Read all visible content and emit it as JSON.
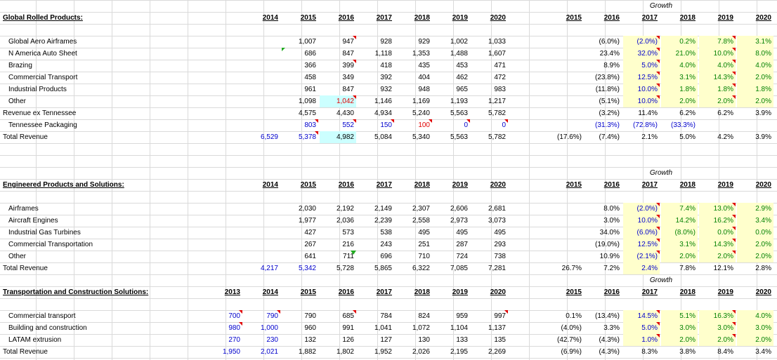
{
  "sheet": {
    "growth_label": "Growth",
    "sections": [
      {
        "title": "Global Rolled Products:",
        "years": [
          "2014",
          "2015",
          "2016",
          "2017",
          "2018",
          "2019",
          "2020"
        ],
        "growth_years": [
          "2015",
          "2016",
          "2017",
          "2018",
          "2019",
          "2020"
        ],
        "rows": [
          {
            "label": "Global Aero Airframes",
            "indent": true,
            "v": [
              "",
              "1,007",
              "947",
              "928",
              "929",
              "1,002",
              "1,033"
            ],
            "g": [
              "",
              "(6.0%)",
              "(2.0%)",
              "0.2%",
              "7.8%",
              "3.1%"
            ]
          },
          {
            "label": "N America Auto Sheet",
            "indent": true,
            "v": [
              "",
              "686",
              "847",
              "1,118",
              "1,353",
              "1,488",
              "1,607"
            ],
            "g": [
              "",
              "23.4%",
              "32.0%",
              "21.0%",
              "10.0%",
              "8.0%"
            ]
          },
          {
            "label": "Brazing",
            "indent": true,
            "v": [
              "",
              "366",
              "399",
              "418",
              "435",
              "453",
              "471"
            ],
            "g": [
              "",
              "8.9%",
              "5.0%",
              "4.0%",
              "4.0%",
              "4.0%"
            ]
          },
          {
            "label": "Commercial Transport",
            "indent": true,
            "v": [
              "",
              "458",
              "349",
              "392",
              "404",
              "462",
              "472"
            ],
            "g": [
              "",
              "(23.8%)",
              "12.5%",
              "3.1%",
              "14.3%",
              "2.0%"
            ]
          },
          {
            "label": "Industrial Products",
            "indent": true,
            "v": [
              "",
              "961",
              "847",
              "932",
              "948",
              "965",
              "983"
            ],
            "g": [
              "",
              "(11.8%)",
              "10.0%",
              "1.8%",
              "1.8%",
              "1.8%"
            ]
          },
          {
            "label": "Other",
            "indent": true,
            "v": [
              "",
              "1,098",
              "1,042",
              "1,146",
              "1,169",
              "1,193",
              "1,217"
            ],
            "g": [
              "",
              "(5.1%)",
              "10.0%",
              "2.0%",
              "2.0%",
              "2.0%"
            ]
          },
          {
            "label": "Revenue ex Tennessee",
            "indent": false,
            "v": [
              "",
              "4,575",
              "4,430",
              "4,934",
              "5,240",
              "5,563",
              "5,782"
            ],
            "g": [
              "",
              "(3.2%)",
              "11.4%",
              "6.2%",
              "6.2%",
              "3.9%"
            ]
          },
          {
            "label": "Tennessee Packaging",
            "indent": true,
            "v": [
              "",
              "803",
              "552",
              "150",
              "100",
              "0",
              "0"
            ],
            "g": [
              "",
              "(31.3%)",
              "(72.8%)",
              "(33.3%)",
              "",
              ""
            ]
          },
          {
            "label": "Total Revenue",
            "indent": false,
            "v": [
              "6,529",
              "5,378",
              "4,982",
              "5,084",
              "5,340",
              "5,563",
              "5,782"
            ],
            "g": [
              "(17.6%)",
              "(7.4%)",
              "2.1%",
              "5.0%",
              "4.2%",
              "3.9%"
            ]
          }
        ]
      },
      {
        "title": "Engineered Products and Solutions:",
        "years": [
          "2014",
          "2015",
          "2016",
          "2017",
          "2018",
          "2019",
          "2020"
        ],
        "growth_years": [
          "2015",
          "2016",
          "2017",
          "2018",
          "2019",
          "2020"
        ],
        "rows": [
          {
            "label": "Airframes",
            "indent": true,
            "v": [
              "",
              "2,030",
              "2,192",
              "2,149",
              "2,307",
              "2,606",
              "2,681"
            ],
            "g": [
              "",
              "8.0%",
              "(2.0%)",
              "7.4%",
              "13.0%",
              "2.9%"
            ]
          },
          {
            "label": "Aircraft Engines",
            "indent": true,
            "v": [
              "",
              "1,977",
              "2,036",
              "2,239",
              "2,558",
              "2,973",
              "3,073"
            ],
            "g": [
              "",
              "3.0%",
              "10.0%",
              "14.2%",
              "16.2%",
              "3.4%"
            ]
          },
          {
            "label": "Industrial Gas Turbines",
            "indent": true,
            "v": [
              "",
              "427",
              "573",
              "538",
              "495",
              "495",
              "495"
            ],
            "g": [
              "",
              "34.0%",
              "(6.0%)",
              "(8.0%)",
              "0.0%",
              "0.0%"
            ]
          },
          {
            "label": "Commercial Transportation",
            "indent": true,
            "v": [
              "",
              "267",
              "216",
              "243",
              "251",
              "287",
              "293"
            ],
            "g": [
              "",
              "(19.0%)",
              "12.5%",
              "3.1%",
              "14.3%",
              "2.0%"
            ]
          },
          {
            "label": "Other",
            "indent": true,
            "v": [
              "",
              "641",
              "711",
              "696",
              "710",
              "724",
              "738"
            ],
            "g": [
              "",
              "10.9%",
              "(2.1%)",
              "2.0%",
              "2.0%",
              "2.0%"
            ]
          },
          {
            "label": "Total Revenue",
            "indent": false,
            "v": [
              "4,217",
              "5,342",
              "5,728",
              "5,865",
              "6,322",
              "7,085",
              "7,281"
            ],
            "g": [
              "26.7%",
              "7.2%",
              "2.4%",
              "7.8%",
              "12.1%",
              "2.8%"
            ]
          }
        ]
      },
      {
        "title": "Transportation and Construction Solutions:",
        "years": [
          "2013",
          "2014",
          "2015",
          "2016",
          "2017",
          "2018",
          "2019",
          "2020"
        ],
        "growth_years": [
          "2015",
          "2016",
          "2017",
          "2018",
          "2019",
          "2020"
        ],
        "rows": [
          {
            "label": "Commercial transport",
            "indent": true,
            "v": [
              "700",
              "790",
              "790",
              "685",
              "784",
              "824",
              "959",
              "997"
            ],
            "g": [
              "0.1%",
              "(13.4%)",
              "14.5%",
              "5.1%",
              "16.3%",
              "4.0%"
            ]
          },
          {
            "label": "Building and construction",
            "indent": true,
            "v": [
              "980",
              "1,000",
              "960",
              "991",
              "1,041",
              "1,072",
              "1,104",
              "1,137"
            ],
            "g": [
              "(4.0%)",
              "3.3%",
              "5.0%",
              "3.0%",
              "3.0%",
              "3.0%"
            ]
          },
          {
            "label": "LATAM extrusion",
            "indent": true,
            "v": [
              "270",
              "230",
              "132",
              "126",
              "127",
              "130",
              "133",
              "135"
            ],
            "g": [
              "(42.7%)",
              "(4.3%)",
              "1.0%",
              "2.0%",
              "2.0%",
              "2.0%"
            ]
          },
          {
            "label": "Total Revenue",
            "indent": false,
            "v": [
              "1,950",
              "2,021",
              "1,882",
              "1,802",
              "1,952",
              "2,026",
              "2,195",
              "2,269"
            ],
            "g": [
              "(6.9%)",
              "(4.3%)",
              "8.3%",
              "3.8%",
              "8.4%",
              "3.4%"
            ]
          }
        ]
      }
    ]
  }
}
